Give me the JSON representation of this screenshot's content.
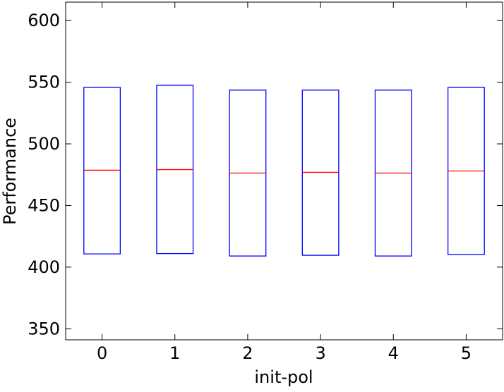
{
  "chart_data": {
    "type": "box",
    "xlabel": "init-pol",
    "ylabel": "Performance",
    "categories": [
      "0",
      "1",
      "2",
      "3",
      "4",
      "5"
    ],
    "q1": [
      410.7,
      411,
      409,
      409.6,
      409,
      410.2
    ],
    "median": [
      478.6,
      479.1,
      476.3,
      476.9,
      476.3,
      478
    ],
    "q3": [
      545.8,
      547.5,
      543.6,
      543.6,
      543.6,
      545.8
    ],
    "box_color": "#0000ff",
    "median_color": "#ff0000",
    "ylim": [
      341,
      615
    ],
    "yticks": [
      350,
      400,
      450,
      500,
      550,
      600
    ]
  }
}
